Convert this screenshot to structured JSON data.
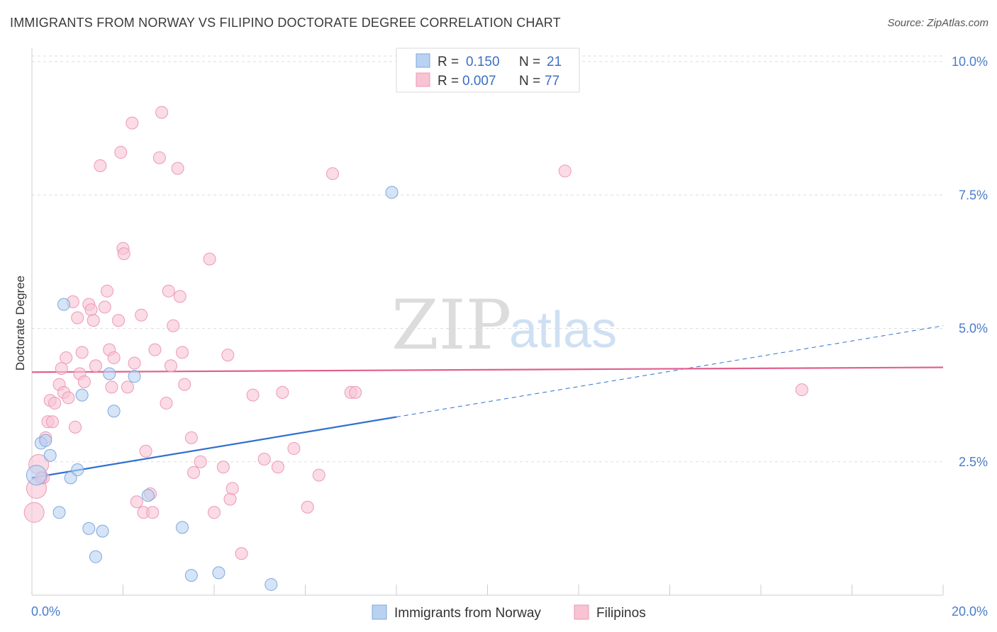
{
  "title": "IMMIGRANTS FROM NORWAY VS FILIPINO DOCTORATE DEGREE CORRELATION CHART",
  "source": "Source: ZipAtlas.com",
  "watermark": {
    "zip": "ZIP",
    "atlas": "atlas"
  },
  "colors": {
    "norway_fill": "#b9d2f2",
    "norway_stroke": "#7fa8de",
    "norway_line": "#2f6fd0",
    "filipino_fill": "#f8c3d3",
    "filipino_stroke": "#eb9ab5",
    "filipino_line": "#e0608e",
    "grid": "#dddddd",
    "tick_text": "#4a7cc9"
  },
  "legend": {
    "rows": [
      {
        "r_label": "R =",
        "r_value": "0.150",
        "n_label": "N =",
        "n_value": "21"
      },
      {
        "r_label": "R =",
        "r_value": "0.007",
        "n_label": "N =",
        "n_value": "77"
      }
    ]
  },
  "bottom_legend": [
    "Immigrants from Norway",
    "Filipinos"
  ],
  "chart_data": {
    "type": "scatter",
    "title": "IMMIGRANTS FROM NORWAY VS FILIPINO DOCTORATE DEGREE CORRELATION CHART",
    "xlabel": "",
    "ylabel": "Doctorate Degree",
    "xlim": [
      0,
      20
    ],
    "ylim": [
      0,
      10.2
    ],
    "x_tick_labels": [
      "0.0%",
      "20.0%"
    ],
    "y_ticks": [
      2.5,
      5.0,
      7.5,
      10.0
    ],
    "y_tick_labels": [
      "2.5%",
      "5.0%",
      "7.5%",
      "10.0%"
    ],
    "grid": true,
    "legend_position": "top-center",
    "series": [
      {
        "name": "Immigrants from Norway",
        "r": 0.15,
        "n": 21,
        "trend": {
          "x0": 0,
          "y0": 2.2,
          "x1": 20,
          "y1": 5.05,
          "solid_until": 8.0
        },
        "points": [
          {
            "x": 0.1,
            "y": 2.25,
            "size": "large"
          },
          {
            "x": 0.2,
            "y": 2.85
          },
          {
            "x": 0.3,
            "y": 2.9
          },
          {
            "x": 0.4,
            "y": 2.62
          },
          {
            "x": 0.7,
            "y": 5.45
          },
          {
            "x": 0.6,
            "y": 1.55
          },
          {
            "x": 0.85,
            "y": 2.2
          },
          {
            "x": 1.0,
            "y": 2.35
          },
          {
            "x": 1.1,
            "y": 3.75
          },
          {
            "x": 1.25,
            "y": 1.25
          },
          {
            "x": 1.4,
            "y": 0.72
          },
          {
            "x": 1.55,
            "y": 1.2
          },
          {
            "x": 1.7,
            "y": 4.15
          },
          {
            "x": 1.8,
            "y": 3.45
          },
          {
            "x": 2.25,
            "y": 4.1
          },
          {
            "x": 2.55,
            "y": 1.87
          },
          {
            "x": 3.3,
            "y": 1.27
          },
          {
            "x": 3.5,
            "y": 0.37
          },
          {
            "x": 4.1,
            "y": 0.42
          },
          {
            "x": 5.25,
            "y": 0.2
          },
          {
            "x": 7.9,
            "y": 7.55
          }
        ]
      },
      {
        "name": "Filipinos",
        "r": 0.007,
        "n": 77,
        "trend": {
          "x0": 0,
          "y0": 4.18,
          "x1": 20,
          "y1": 4.27
        },
        "points": [
          {
            "x": 0.05,
            "y": 1.55,
            "size": "large"
          },
          {
            "x": 0.1,
            "y": 2.0,
            "size": "large"
          },
          {
            "x": 0.15,
            "y": 2.45,
            "size": "large"
          },
          {
            "x": 0.25,
            "y": 2.2
          },
          {
            "x": 0.3,
            "y": 2.95
          },
          {
            "x": 0.35,
            "y": 3.25
          },
          {
            "x": 0.4,
            "y": 3.65
          },
          {
            "x": 0.45,
            "y": 3.25
          },
          {
            "x": 0.5,
            "y": 3.6
          },
          {
            "x": 0.6,
            "y": 3.95
          },
          {
            "x": 0.65,
            "y": 4.25
          },
          {
            "x": 0.7,
            "y": 3.8
          },
          {
            "x": 0.75,
            "y": 4.45
          },
          {
            "x": 0.8,
            "y": 3.7
          },
          {
            "x": 0.9,
            "y": 5.5
          },
          {
            "x": 0.95,
            "y": 3.15
          },
          {
            "x": 1.0,
            "y": 5.2
          },
          {
            "x": 1.05,
            "y": 4.15
          },
          {
            "x": 1.1,
            "y": 4.55
          },
          {
            "x": 1.15,
            "y": 4.0
          },
          {
            "x": 1.25,
            "y": 5.45
          },
          {
            "x": 1.3,
            "y": 5.35
          },
          {
            "x": 1.35,
            "y": 5.15
          },
          {
            "x": 1.4,
            "y": 4.3
          },
          {
            "x": 1.5,
            "y": 8.05
          },
          {
            "x": 1.6,
            "y": 5.4
          },
          {
            "x": 1.65,
            "y": 5.7
          },
          {
            "x": 1.7,
            "y": 4.6
          },
          {
            "x": 1.75,
            "y": 3.9
          },
          {
            "x": 1.8,
            "y": 4.45
          },
          {
            "x": 1.9,
            "y": 5.15
          },
          {
            "x": 1.95,
            "y": 8.3
          },
          {
            "x": 2.0,
            "y": 6.5
          },
          {
            "x": 2.02,
            "y": 6.4
          },
          {
            "x": 2.1,
            "y": 3.9
          },
          {
            "x": 2.2,
            "y": 8.85
          },
          {
            "x": 2.25,
            "y": 4.35
          },
          {
            "x": 2.3,
            "y": 1.75
          },
          {
            "x": 2.4,
            "y": 5.25
          },
          {
            "x": 2.45,
            "y": 1.55
          },
          {
            "x": 2.5,
            "y": 2.7
          },
          {
            "x": 2.6,
            "y": 1.9
          },
          {
            "x": 2.65,
            "y": 1.55
          },
          {
            "x": 2.7,
            "y": 4.6
          },
          {
            "x": 2.8,
            "y": 8.2
          },
          {
            "x": 2.85,
            "y": 9.05
          },
          {
            "x": 2.95,
            "y": 3.6
          },
          {
            "x": 3.0,
            "y": 5.7
          },
          {
            "x": 3.05,
            "y": 4.3
          },
          {
            "x": 3.1,
            "y": 5.05
          },
          {
            "x": 3.2,
            "y": 8.0
          },
          {
            "x": 3.25,
            "y": 5.6
          },
          {
            "x": 3.3,
            "y": 4.55
          },
          {
            "x": 3.35,
            "y": 3.95
          },
          {
            "x": 3.5,
            "y": 2.95
          },
          {
            "x": 3.55,
            "y": 2.3
          },
          {
            "x": 3.7,
            "y": 2.5
          },
          {
            "x": 3.9,
            "y": 6.3
          },
          {
            "x": 4.0,
            "y": 1.55
          },
          {
            "x": 4.2,
            "y": 2.4
          },
          {
            "x": 4.3,
            "y": 4.5
          },
          {
            "x": 4.35,
            "y": 1.8
          },
          {
            "x": 4.4,
            "y": 2.0
          },
          {
            "x": 4.6,
            "y": 0.78
          },
          {
            "x": 4.85,
            "y": 3.75
          },
          {
            "x": 5.1,
            "y": 2.55
          },
          {
            "x": 5.4,
            "y": 2.4
          },
          {
            "x": 5.5,
            "y": 3.8
          },
          {
            "x": 5.75,
            "y": 2.75
          },
          {
            "x": 6.05,
            "y": 1.65
          },
          {
            "x": 6.3,
            "y": 2.25
          },
          {
            "x": 6.6,
            "y": 7.9
          },
          {
            "x": 7.0,
            "y": 3.8
          },
          {
            "x": 7.1,
            "y": 3.8
          },
          {
            "x": 11.7,
            "y": 7.95
          },
          {
            "x": 16.9,
            "y": 3.85
          },
          {
            "x": 0.2,
            "y": 2.2
          }
        ]
      }
    ]
  }
}
